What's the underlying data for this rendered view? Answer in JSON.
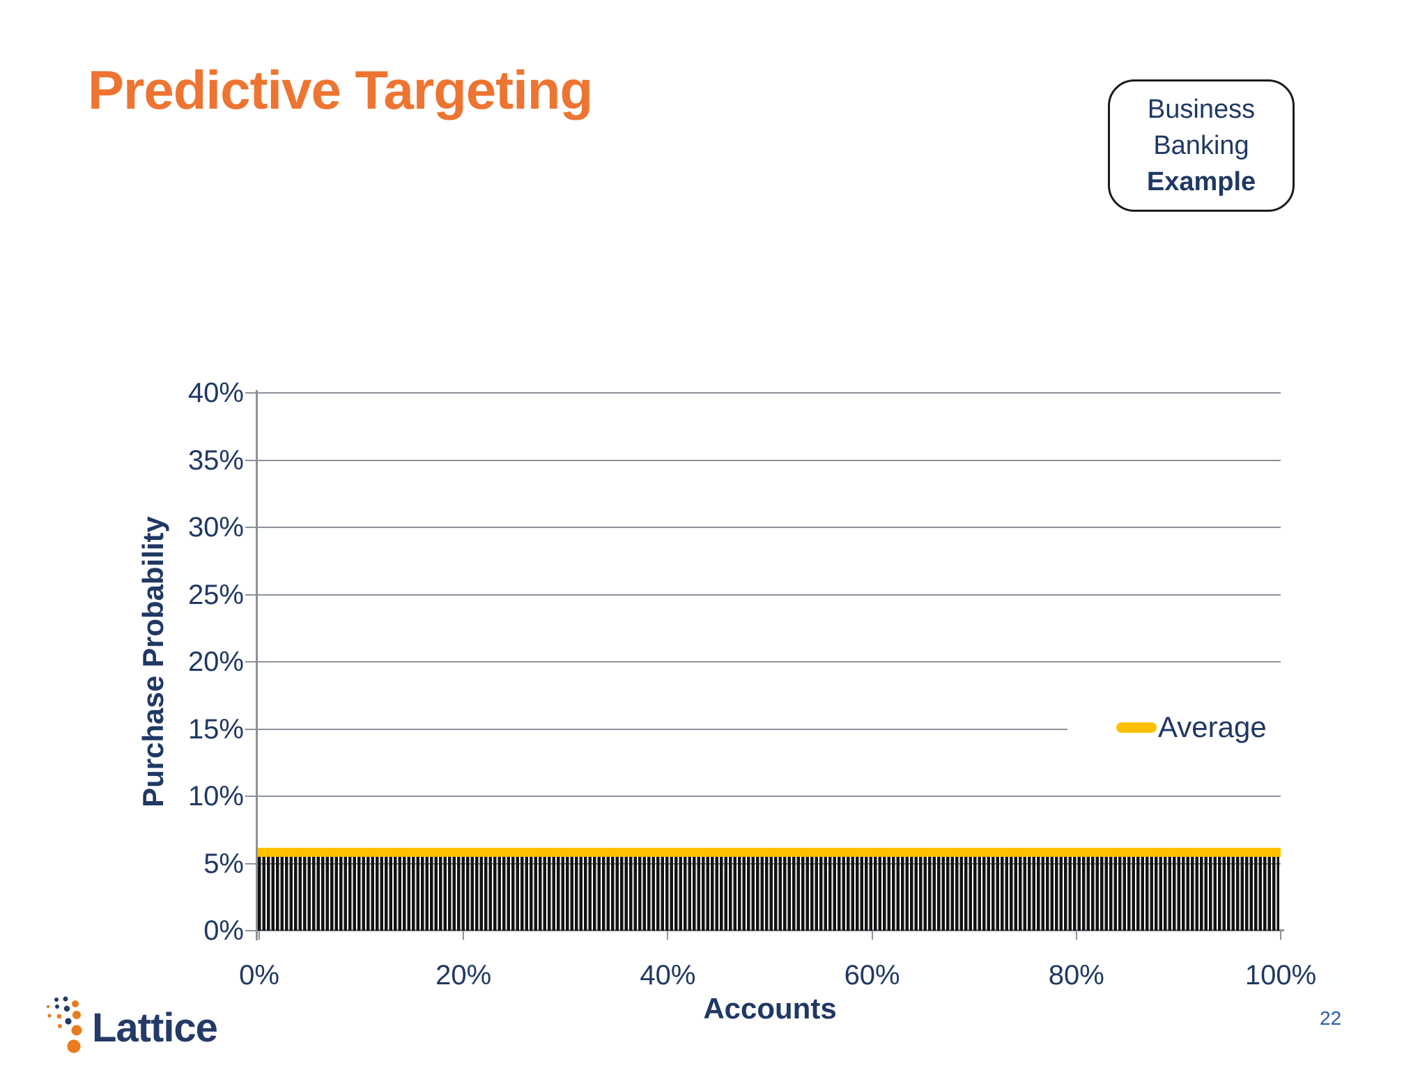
{
  "slide": {
    "title": "Predictive Targeting",
    "context_box": {
      "line1": "Business",
      "line2": "Banking",
      "line3": "Example"
    },
    "footer": {
      "logo_text": "Lattice",
      "page_number": "22"
    }
  },
  "chart_data": {
    "type": "bar",
    "title": "",
    "xlabel": "Accounts",
    "ylabel": "Purchase Probability",
    "x_tick_labels": [
      "0%",
      "20%",
      "40%",
      "60%",
      "80%",
      "100%"
    ],
    "y_tick_labels": [
      "0%",
      "5%",
      "10%",
      "15%",
      "20%",
      "25%",
      "30%",
      "35%",
      "40%"
    ],
    "xlim": [
      0,
      100
    ],
    "ylim": [
      0,
      40
    ],
    "grid": true,
    "legend": {
      "position": "middle-right",
      "entries": [
        "Average"
      ]
    },
    "series": [
      {
        "name": "Accounts",
        "type": "bar",
        "style": "dense-uniform-black-bars",
        "bar_count": 220,
        "uniform_value_pct": 5.5,
        "color": "#131313",
        "note": "~220 thin bars of equal height (≈5.5% purchase probability) spanning 0%–100% of accounts"
      },
      {
        "name": "Average",
        "type": "line",
        "value_pct": 5.85,
        "color": "#FFC000"
      }
    ],
    "colors": {
      "axis": "#8E909B",
      "tick_label": "#1F3864",
      "accent_yellow": "#FFC000",
      "title_orange": "#ED7431"
    }
  }
}
